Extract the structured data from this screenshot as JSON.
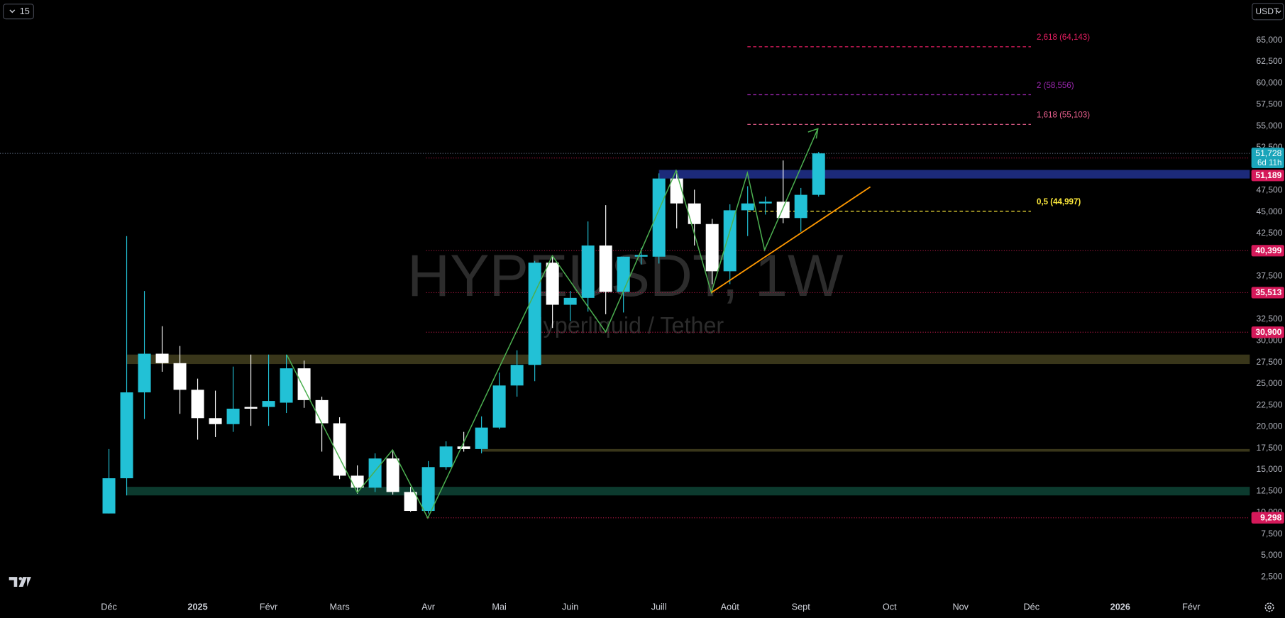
{
  "chart_data": {
    "type": "candlestick",
    "title": "HYPEUSDT, 1W",
    "subtitle": "Hyperliquid / Tether",
    "x": [
      0,
      1,
      2,
      3,
      4,
      5,
      6,
      7,
      8,
      9,
      10,
      11,
      12,
      13,
      14,
      15,
      16,
      17,
      18,
      19,
      20,
      21,
      22,
      23,
      24,
      25,
      26,
      27,
      28,
      29,
      30,
      31,
      32,
      33,
      34,
      35,
      36,
      37,
      38,
      39,
      40
    ],
    "open": [
      9800,
      13900,
      23900,
      28400,
      27300,
      24200,
      20900,
      20200,
      22200,
      22200,
      22700,
      26700,
      23000,
      20300,
      14200,
      12800,
      16200,
      12300,
      10100,
      15200,
      17600,
      17300,
      19800,
      24700,
      27100,
      39000,
      34100,
      34900,
      41000,
      35600,
      39700,
      39700,
      48800,
      45900,
      43500,
      38000,
      45100,
      45900,
      46100,
      44200,
      46900
    ],
    "high": [
      17300,
      42100,
      35700,
      31600,
      29300,
      25500,
      24100,
      26900,
      28300,
      28300,
      28300,
      27600,
      23400,
      21000,
      15400,
      16800,
      17200,
      12900,
      15900,
      18200,
      19300,
      21100,
      26200,
      28800,
      39200,
      39800,
      35700,
      43800,
      45700,
      39700,
      40700,
      49400,
      49700,
      47500,
      44100,
      45800,
      47900,
      46700,
      50900,
      47700,
      51900
    ],
    "low": [
      9800,
      11900,
      20800,
      26300,
      21400,
      18400,
      18700,
      19300,
      20000,
      20000,
      21500,
      22100,
      17000,
      13800,
      12100,
      12300,
      12000,
      10000,
      9800,
      14900,
      17000,
      16800,
      19600,
      23400,
      25200,
      31400,
      32200,
      33300,
      33000,
      33200,
      38800,
      38900,
      43000,
      41000,
      36500,
      36500,
      42100,
      44600,
      43600,
      42600,
      46700
    ],
    "close": [
      13900,
      23900,
      28400,
      27300,
      24200,
      20900,
      20200,
      22000,
      22000,
      22900,
      26700,
      23000,
      20300,
      14200,
      12800,
      16200,
      12300,
      10100,
      15200,
      17600,
      17300,
      19800,
      24700,
      27100,
      39000,
      34100,
      34900,
      41000,
      35600,
      39700,
      39900,
      48800,
      45900,
      43500,
      38000,
      45100,
      45900,
      46100,
      44200,
      46900,
      51728
    ],
    "up_color": "#22c1d6",
    "down_color": "#ffffff",
    "last_price_label": "51,728",
    "countdown": "6d 11h",
    "xlim": [
      -6.14,
      64.3
    ],
    "xticks": [
      {
        "value": 0,
        "label": "Déc"
      },
      {
        "value": 5,
        "label": "2025"
      },
      {
        "value": 9,
        "label": "Févr"
      },
      {
        "value": 13,
        "label": "Mars"
      },
      {
        "value": 18,
        "label": "Avr"
      },
      {
        "value": 22,
        "label": "Mai"
      },
      {
        "value": 26,
        "label": "Juin"
      },
      {
        "value": 31,
        "label": "Juill"
      },
      {
        "value": 35,
        "label": "Août"
      },
      {
        "value": 39,
        "label": "Sept"
      },
      {
        "value": 44,
        "label": "Oct"
      },
      {
        "value": 48,
        "label": "Nov"
      },
      {
        "value": 52,
        "label": "Déc"
      },
      {
        "value": 57,
        "label": "2026"
      },
      {
        "value": 61,
        "label": "Févr"
      }
    ],
    "ylim": [
      0,
      69580
    ],
    "yticks": [
      {
        "value": 2500,
        "label": "2,500"
      },
      {
        "value": 5000,
        "label": "5,000"
      },
      {
        "value": 7500,
        "label": "7,500"
      },
      {
        "value": 10000,
        "label": "10,000"
      },
      {
        "value": 12500,
        "label": "12,500"
      },
      {
        "value": 15000,
        "label": "15,000"
      },
      {
        "value": 17500,
        "label": "17,500"
      },
      {
        "value": 20000,
        "label": "20,000"
      },
      {
        "value": 22500,
        "label": "22,500"
      },
      {
        "value": 25000,
        "label": "25,000"
      },
      {
        "value": 27500,
        "label": "27,500"
      },
      {
        "value": 30000,
        "label": "30,000"
      },
      {
        "value": 32500,
        "label": "32,500"
      },
      {
        "value": 37500,
        "label": "37,500"
      },
      {
        "value": 42500,
        "label": "42,500"
      },
      {
        "value": 45000,
        "label": "45,000"
      },
      {
        "value": 47500,
        "label": "47,500"
      },
      {
        "value": 52500,
        "label": "52,500"
      },
      {
        "value": 55000,
        "label": "55,000"
      },
      {
        "value": 57500,
        "label": "57,500"
      },
      {
        "value": 60000,
        "label": "60,000"
      },
      {
        "value": 62500,
        "label": "62,500"
      },
      {
        "value": 65000,
        "label": "65,000"
      }
    ],
    "grid": false,
    "levels": [
      {
        "value": 51189,
        "label": "51,189"
      },
      {
        "value": 40399,
        "label": "40,399"
      },
      {
        "value": 35513,
        "label": "35,513"
      },
      {
        "value": 30900,
        "label": "30,900"
      },
      {
        "value": 9298,
        "label": "9,298"
      }
    ],
    "fib_levels": [
      {
        "value": 64143,
        "label": "2,618 (64,143)",
        "color": "#e91e63"
      },
      {
        "value": 58556,
        "label": "2 (58,556)",
        "color": "#9c27b0"
      },
      {
        "value": 55103,
        "label": "1,618 (55,103)",
        "color": "#f06292"
      },
      {
        "value": 44997,
        "label": "0,5 (44,997)",
        "color": "#ffeb3b"
      }
    ],
    "zones": [
      {
        "from": 31,
        "low": 48800,
        "high": 49800,
        "color": "#1c2a7a"
      },
      {
        "from": 1,
        "low": 27200,
        "high": 28300,
        "color": "#39361a"
      },
      {
        "from": 21,
        "low": 17000,
        "high": 17300,
        "color": "#39361a"
      },
      {
        "from": 1,
        "low": 11900,
        "high": 12900,
        "color": "#0c3a2e"
      }
    ]
  },
  "toolbar": {
    "interval": "15",
    "currency": "USDT"
  }
}
